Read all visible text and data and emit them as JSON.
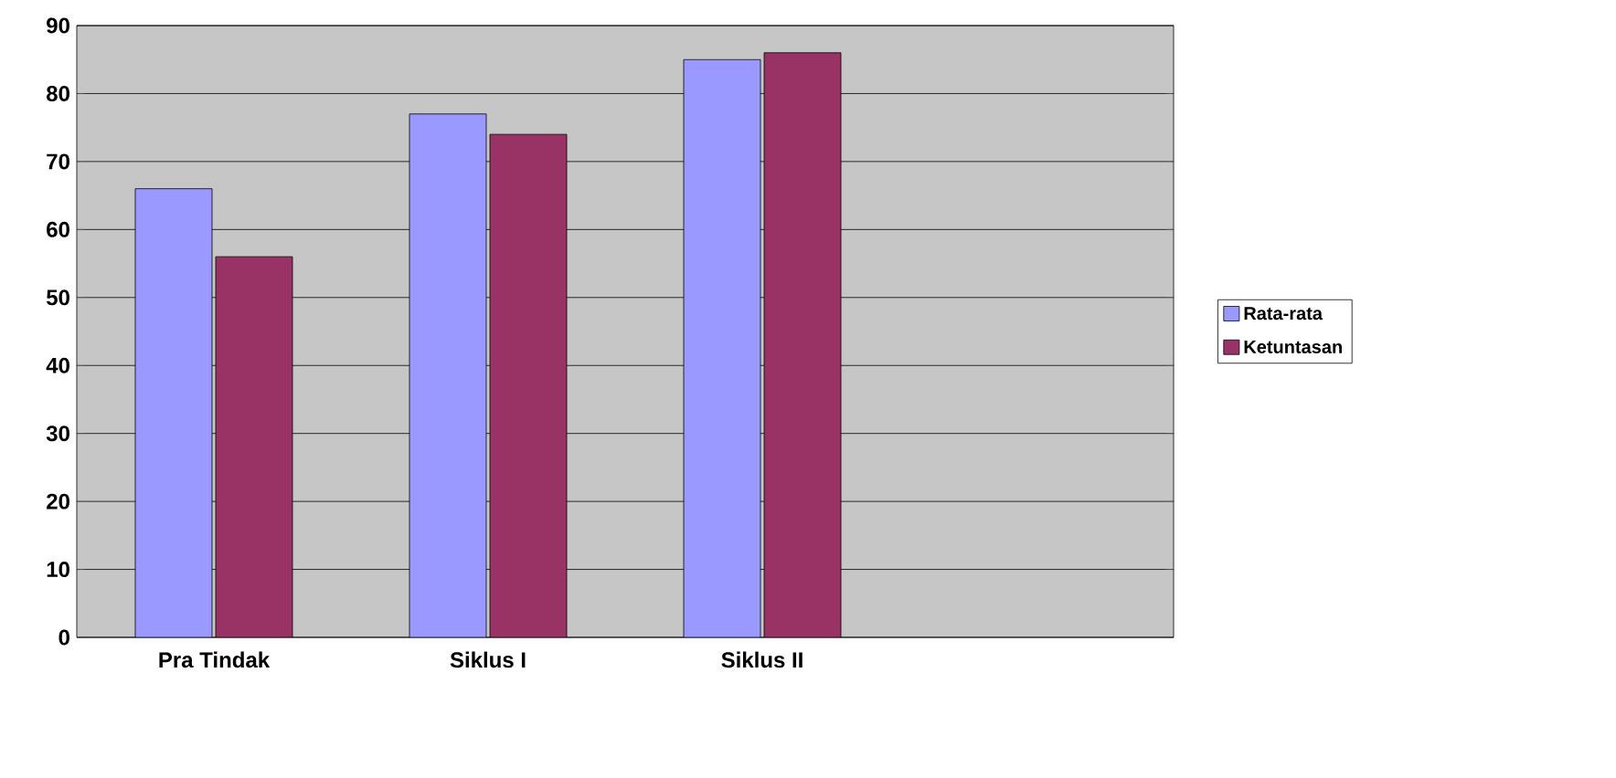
{
  "chart_data": {
    "type": "bar",
    "categories": [
      "Pra Tindak",
      "Siklus I",
      "Siklus II",
      null
    ],
    "series": [
      {
        "name": "Rata-rata",
        "color": "#9999ff",
        "values": [
          66,
          77,
          85,
          null
        ]
      },
      {
        "name": "Ketuntasan",
        "color": "#993366",
        "values": [
          56,
          74,
          86,
          null
        ]
      }
    ],
    "ylim": [
      0,
      90
    ],
    "yticks": [
      0,
      10,
      20,
      30,
      40,
      50,
      60,
      70,
      80,
      90
    ],
    "grid": "y",
    "legend": "right"
  }
}
